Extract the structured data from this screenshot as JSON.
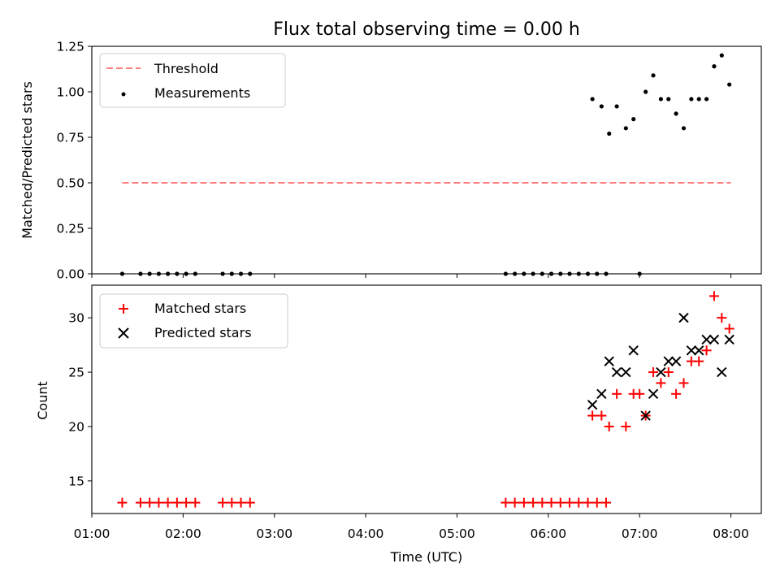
{
  "chart_data": [
    {
      "type": "scatter",
      "title": "Flux total observing time = 0.00 h",
      "xlabel": "",
      "ylabel": "Matched/Predicted stars",
      "xlim": [
        "01:00",
        "08:20"
      ],
      "ylim": [
        0,
        1.25
      ],
      "y_ticks": [
        "0.00",
        "0.25",
        "0.50",
        "0.75",
        "1.00",
        "1.25"
      ],
      "legend_position": "top-left",
      "series": [
        {
          "name": "Threshold",
          "kind": "dashed-line",
          "color": "#ff7f7f",
          "x": [
            "01:20",
            "08:00"
          ],
          "y": [
            0.5,
            0.5
          ]
        },
        {
          "name": "Measurements",
          "kind": "points",
          "color": "#000000",
          "x": [
            "01:20",
            "01:32",
            "01:38",
            "01:44",
            "01:50",
            "01:56",
            "02:02",
            "02:08",
            "02:26",
            "02:32",
            "02:38",
            "02:44",
            "05:32",
            "05:38",
            "05:44",
            "05:50",
            "05:56",
            "06:02",
            "06:08",
            "06:14",
            "06:20",
            "06:26",
            "06:32",
            "06:38",
            "06:29",
            "06:35",
            "06:40",
            "06:45",
            "06:51",
            "06:56",
            "07:00",
            "07:04",
            "07:09",
            "07:14",
            "07:19",
            "07:24",
            "07:29",
            "07:34",
            "07:39",
            "07:44",
            "07:49",
            "07:54",
            "07:59"
          ],
          "y": [
            0,
            0,
            0,
            0,
            0,
            0,
            0,
            0,
            0,
            0,
            0,
            0,
            0,
            0,
            0,
            0,
            0,
            0,
            0,
            0,
            0,
            0,
            0,
            0,
            0.96,
            0.92,
            0.77,
            0.92,
            0.8,
            0.85,
            0,
            1.0,
            1.09,
            0.96,
            0.96,
            0.88,
            0.8,
            0.96,
            0.96,
            0.96,
            1.14,
            1.2,
            1.04
          ]
        }
      ]
    },
    {
      "type": "scatter",
      "title": "",
      "xlabel": "Time (UTC)",
      "ylabel": "Count",
      "xlim": [
        "01:00",
        "08:20"
      ],
      "ylim": [
        12,
        33
      ],
      "x_ticks": [
        "01:00",
        "02:00",
        "03:00",
        "04:00",
        "05:00",
        "06:00",
        "07:00",
        "08:00"
      ],
      "y_ticks": [
        "15",
        "20",
        "25",
        "30"
      ],
      "legend_position": "top-left",
      "series": [
        {
          "name": "Matched stars",
          "marker": "+",
          "color": "#ff0000",
          "x": [
            "01:20",
            "01:32",
            "01:38",
            "01:44",
            "01:50",
            "01:56",
            "02:02",
            "02:08",
            "02:26",
            "02:32",
            "02:38",
            "02:44",
            "05:32",
            "05:38",
            "05:44",
            "05:50",
            "05:56",
            "06:02",
            "06:08",
            "06:14",
            "06:20",
            "06:26",
            "06:32",
            "06:38",
            "06:29",
            "06:35",
            "06:40",
            "06:45",
            "06:51",
            "06:56",
            "07:00",
            "07:04",
            "07:09",
            "07:14",
            "07:19",
            "07:24",
            "07:29",
            "07:34",
            "07:39",
            "07:44",
            "07:49",
            "07:54",
            "07:59"
          ],
          "y": [
            13,
            13,
            13,
            13,
            13,
            13,
            13,
            13,
            13,
            13,
            13,
            13,
            13,
            13,
            13,
            13,
            13,
            13,
            13,
            13,
            13,
            13,
            13,
            13,
            21,
            21,
            20,
            23,
            20,
            23,
            23,
            21,
            25,
            24,
            25,
            23,
            24,
            26,
            26,
            27,
            32,
            30,
            29
          ]
        },
        {
          "name": "Predicted stars",
          "marker": "x",
          "color": "#000000",
          "x": [
            "06:29",
            "06:35",
            "06:40",
            "06:45",
            "06:51",
            "06:56",
            "07:04",
            "07:09",
            "07:14",
            "07:19",
            "07:24",
            "07:29",
            "07:34",
            "07:39",
            "07:44",
            "07:49",
            "07:54",
            "07:59"
          ],
          "y": [
            22,
            23,
            26,
            25,
            25,
            27,
            21,
            23,
            25,
            26,
            26,
            30,
            27,
            27,
            28,
            28,
            25,
            28
          ]
        }
      ]
    }
  ]
}
